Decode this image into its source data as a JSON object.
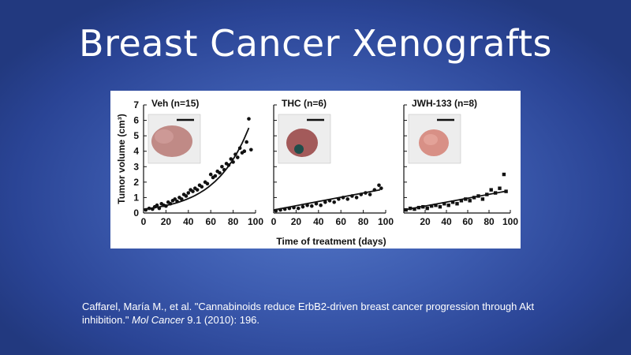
{
  "slide": {
    "title": "Breast Cancer Xenografts",
    "citation": {
      "prefix": "Caffarel, María M., et al. \"Cannabinoids reduce ErbB2-driven breast cancer progression through Akt inhibition.\" ",
      "journal": "Mol Cancer",
      "suffix": " 9.1 (2010): 196."
    }
  },
  "chart_data": [
    {
      "type": "scatter",
      "title": "Veh (n=15)",
      "xlabel": "Time of treatment (days)",
      "ylabel": "Tumor volume (cm³)",
      "xlim": [
        0,
        100
      ],
      "ylim": [
        0,
        7
      ],
      "xticks": [
        0,
        20,
        40,
        60,
        80,
        100
      ],
      "yticks": [
        0,
        1,
        2,
        3,
        4,
        5,
        6,
        7
      ],
      "marker": "circle",
      "trend": "exponential",
      "trend_points": [
        [
          0,
          0.25
        ],
        [
          20,
          0.5
        ],
        [
          40,
          1.0
        ],
        [
          60,
          1.9
        ],
        [
          80,
          3.4
        ],
        [
          95,
          5.7
        ]
      ],
      "points": [
        [
          2,
          0.2
        ],
        [
          5,
          0.3
        ],
        [
          8,
          0.25
        ],
        [
          10,
          0.4
        ],
        [
          12,
          0.5
        ],
        [
          14,
          0.3
        ],
        [
          16,
          0.6
        ],
        [
          18,
          0.5
        ],
        [
          20,
          0.45
        ],
        [
          22,
          0.7
        ],
        [
          24,
          0.6
        ],
        [
          26,
          0.8
        ],
        [
          28,
          0.9
        ],
        [
          30,
          0.75
        ],
        [
          32,
          1.0
        ],
        [
          34,
          0.9
        ],
        [
          36,
          1.2
        ],
        [
          38,
          1.1
        ],
        [
          40,
          1.3
        ],
        [
          42,
          1.5
        ],
        [
          44,
          1.4
        ],
        [
          46,
          1.6
        ],
        [
          48,
          1.5
        ],
        [
          50,
          1.8
        ],
        [
          52,
          1.7
        ],
        [
          55,
          2.0
        ],
        [
          57,
          1.9
        ],
        [
          60,
          2.5
        ],
        [
          62,
          2.3
        ],
        [
          64,
          2.4
        ],
        [
          66,
          2.7
        ],
        [
          68,
          2.6
        ],
        [
          70,
          3.0
        ],
        [
          72,
          2.8
        ],
        [
          74,
          3.2
        ],
        [
          76,
          3.1
        ],
        [
          78,
          3.5
        ],
        [
          80,
          3.3
        ],
        [
          82,
          3.8
        ],
        [
          84,
          3.6
        ],
        [
          86,
          4.2
        ],
        [
          88,
          3.9
        ],
        [
          90,
          4.0
        ],
        [
          92,
          4.6
        ],
        [
          94,
          6.1
        ],
        [
          96,
          4.1
        ]
      ]
    },
    {
      "type": "scatter",
      "title": "THC (n=6)",
      "xlim": [
        0,
        100
      ],
      "ylim": [
        0,
        7
      ],
      "xticks": [
        0,
        20,
        40,
        60,
        80,
        100
      ],
      "marker": "circle",
      "trend": "linear",
      "trend_points": [
        [
          0,
          0.2
        ],
        [
          95,
          1.5
        ]
      ],
      "points": [
        [
          2,
          0.15
        ],
        [
          6,
          0.2
        ],
        [
          10,
          0.25
        ],
        [
          14,
          0.3
        ],
        [
          18,
          0.35
        ],
        [
          22,
          0.3
        ],
        [
          26,
          0.4
        ],
        [
          30,
          0.5
        ],
        [
          34,
          0.45
        ],
        [
          38,
          0.6
        ],
        [
          42,
          0.5
        ],
        [
          46,
          0.7
        ],
        [
          50,
          0.8
        ],
        [
          54,
          0.7
        ],
        [
          58,
          0.9
        ],
        [
          62,
          1.0
        ],
        [
          66,
          0.9
        ],
        [
          70,
          1.1
        ],
        [
          74,
          1.0
        ],
        [
          78,
          1.2
        ],
        [
          82,
          1.3
        ],
        [
          86,
          1.2
        ],
        [
          90,
          1.5
        ],
        [
          94,
          1.8
        ],
        [
          96,
          1.6
        ]
      ]
    },
    {
      "type": "scatter",
      "title": "JWH-133 (n=8)",
      "xlim": [
        0,
        100
      ],
      "ylim": [
        0,
        7
      ],
      "xticks": [
        20,
        40,
        60,
        80,
        100
      ],
      "marker": "square",
      "trend": "linear",
      "trend_points": [
        [
          0,
          0.2
        ],
        [
          95,
          1.4
        ]
      ],
      "points": [
        [
          2,
          0.2
        ],
        [
          6,
          0.3
        ],
        [
          10,
          0.25
        ],
        [
          14,
          0.35
        ],
        [
          18,
          0.4
        ],
        [
          22,
          0.3
        ],
        [
          26,
          0.45
        ],
        [
          30,
          0.5
        ],
        [
          34,
          0.4
        ],
        [
          38,
          0.6
        ],
        [
          42,
          0.5
        ],
        [
          46,
          0.7
        ],
        [
          50,
          0.6
        ],
        [
          54,
          0.8
        ],
        [
          58,
          0.9
        ],
        [
          62,
          0.8
        ],
        [
          66,
          1.0
        ],
        [
          70,
          1.1
        ],
        [
          74,
          0.9
        ],
        [
          78,
          1.2
        ],
        [
          82,
          1.5
        ],
        [
          86,
          1.3
        ],
        [
          90,
          1.6
        ],
        [
          94,
          2.5
        ],
        [
          96,
          1.4
        ]
      ]
    }
  ],
  "photos": [
    {
      "caption": "excised tumor photo",
      "color": "#c08a86"
    },
    {
      "caption": "excised tumor photo",
      "color": "#a35a5a"
    },
    {
      "caption": "excised tumor photo",
      "color": "#d89086"
    }
  ]
}
